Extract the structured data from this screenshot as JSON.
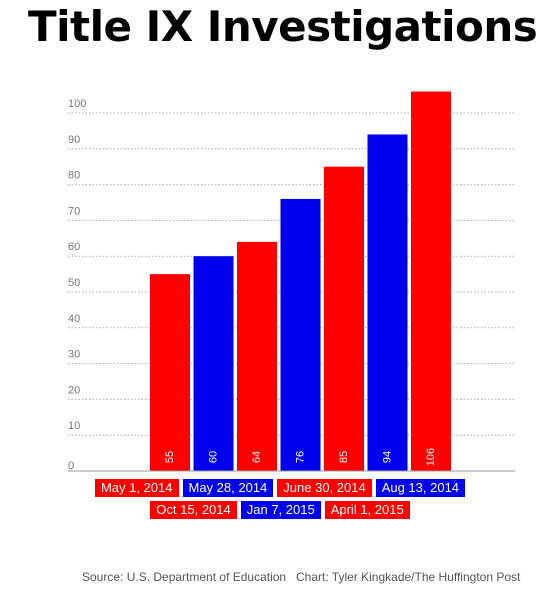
{
  "header": {
    "title": "Title IX Investigations"
  },
  "colors": {
    "red": "#ff0000",
    "blue": "#0000ee",
    "grid": "#aaaaaa",
    "tick": "#777777"
  },
  "chart_data": {
    "type": "bar",
    "title": "Title IX Investigations",
    "categories": [
      "May 1, 2014",
      "May 28, 2014",
      "June 30, 2014",
      "Aug 13, 2014",
      "Oct 15, 2014",
      "Jan 7, 2015",
      "April 1, 2015"
    ],
    "values": [
      55,
      60,
      64,
      76,
      85,
      94,
      106
    ],
    "value_labels": [
      "55",
      "60",
      "64",
      "76",
      "85",
      "94",
      "106"
    ],
    "bar_colors": [
      "red",
      "blue",
      "red",
      "blue",
      "red",
      "blue",
      "red"
    ],
    "ylim": [
      0,
      110
    ],
    "yticks": [
      "0",
      "10",
      "20",
      "30",
      "40",
      "50",
      "60",
      "70",
      "80",
      "90",
      "100"
    ],
    "grid": true,
    "xlabel": "",
    "ylabel": ""
  },
  "legend": {
    "row1": [
      {
        "label": "May 1, 2014",
        "color": "red"
      },
      {
        "label": "May 28, 2014",
        "color": "blue"
      },
      {
        "label": "June 30, 2014",
        "color": "red"
      },
      {
        "label": "Aug 13, 2014",
        "color": "blue"
      }
    ],
    "row2": [
      {
        "label": "Oct 15, 2014",
        "color": "red"
      },
      {
        "label": "Jan 7, 2015",
        "color": "blue"
      },
      {
        "label": "April 1, 2015",
        "color": "red"
      }
    ]
  },
  "footer": {
    "source": "Source: U.S. Department of Education",
    "credit": "Chart: Tyler Kingkade/The Huffington Post"
  }
}
